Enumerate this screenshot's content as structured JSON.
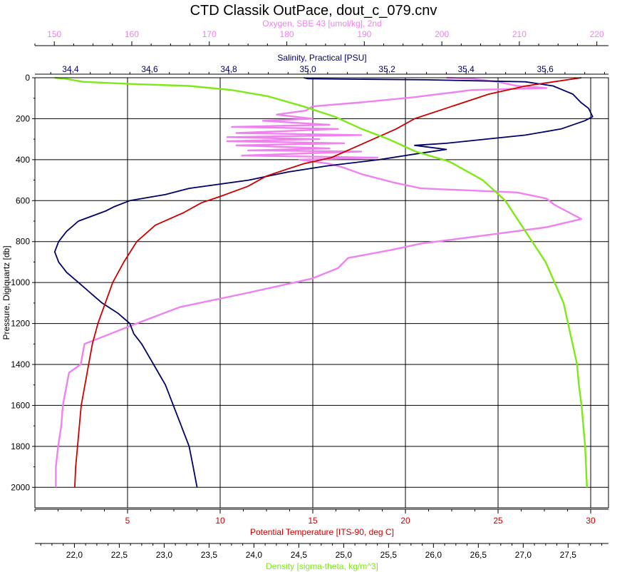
{
  "chart_data": {
    "type": "line",
    "title": "CTD Classik OutPace, dout_c_079.cnv",
    "grid": true,
    "y_axis": {
      "label": "Pressure, Digiquartz [db]",
      "range": [
        0,
        2100
      ],
      "inverted": true,
      "ticks": [
        "0",
        "200",
        "400",
        "600",
        "800",
        "1000",
        "1200",
        "1400",
        "1600",
        "1800",
        "2000"
      ],
      "tick_values": [
        0,
        200,
        400,
        600,
        800,
        1000,
        1200,
        1400,
        1600,
        1800,
        2000
      ]
    },
    "x_axes": [
      {
        "key": "oxygen",
        "label": "Oxygen, SBE 43 [umol/kg], 2nd",
        "position": "top-outer",
        "color": "#ee82ee",
        "range": [
          147.5,
          221.5
        ],
        "ticks": [
          "150",
          "160",
          "170",
          "180",
          "190",
          "200",
          "210",
          "220"
        ],
        "tick_values": [
          150,
          160,
          170,
          180,
          190,
          200,
          210,
          220
        ]
      },
      {
        "key": "salinity",
        "label": "Salinity, Practical [PSU]",
        "position": "top-inner",
        "color": "#000066",
        "range": [
          34.31,
          35.76
        ],
        "ticks": [
          "34,4",
          "34,6",
          "34,8",
          "35,0",
          "35,2",
          "35,4",
          "35,6"
        ],
        "tick_values": [
          34.4,
          34.6,
          34.8,
          35.0,
          35.2,
          35.4,
          35.6
        ]
      },
      {
        "key": "temperature",
        "label": "Potential Temperature [ITS-90, deg C]",
        "position": "bottom-inner",
        "color": "#cc0000",
        "range": [
          0,
          30.96
        ],
        "ticks": [
          "5",
          "10",
          "15",
          "20",
          "25",
          "30"
        ],
        "tick_values": [
          5,
          10,
          15,
          20,
          25,
          30
        ]
      },
      {
        "key": "density",
        "label": "Density [sigma-theta, kg/m^3]",
        "position": "bottom-outer",
        "color": "#7fe817",
        "range": [
          21.56,
          27.95
        ],
        "ticks": [
          "22,0",
          "22,5",
          "23,0",
          "23,5",
          "24,0",
          "24,5",
          "25,0",
          "25,5",
          "26,0",
          "26,5",
          "27,0",
          "27,5"
        ],
        "tick_values": [
          22.0,
          22.5,
          23.0,
          23.5,
          24.0,
          24.5,
          25.0,
          25.5,
          26.0,
          26.5,
          27.0,
          27.5
        ]
      }
    ],
    "series": [
      {
        "axis": "oxygen",
        "color": "#ee82ee",
        "points": [
          [
            200.6,
            0
          ],
          [
            203.9,
            5
          ],
          [
            207.2,
            20
          ],
          [
            209.7,
            40
          ],
          [
            213.5,
            50
          ],
          [
            203.9,
            60
          ],
          [
            196.4,
            95
          ],
          [
            189.6,
            120
          ],
          [
            183.3,
            140
          ],
          [
            182.5,
            160
          ],
          [
            178.7,
            180
          ],
          [
            183.3,
            200
          ],
          [
            176.9,
            210
          ],
          [
            185.5,
            230
          ],
          [
            172.9,
            240
          ],
          [
            186.6,
            250
          ],
          [
            173.5,
            270
          ],
          [
            189.6,
            280
          ],
          [
            172.3,
            290
          ],
          [
            184.2,
            300
          ],
          [
            172.3,
            310
          ],
          [
            187.4,
            320
          ],
          [
            173.5,
            330
          ],
          [
            185.5,
            345
          ],
          [
            175.0,
            355
          ],
          [
            189.6,
            360
          ],
          [
            174.2,
            380
          ],
          [
            191.7,
            390
          ],
          [
            181.6,
            400
          ],
          [
            185.5,
            420
          ],
          [
            187.4,
            440
          ],
          [
            189.6,
            470
          ],
          [
            193.6,
            510
          ],
          [
            197.3,
            540
          ],
          [
            209.7,
            560
          ],
          [
            213.5,
            590
          ],
          [
            214.5,
            620
          ],
          [
            216.5,
            660
          ],
          [
            218.0,
            690
          ],
          [
            213.5,
            730
          ],
          [
            205.5,
            770
          ],
          [
            197.3,
            810
          ],
          [
            193.6,
            840
          ],
          [
            187.9,
            880
          ],
          [
            186.6,
            930
          ],
          [
            183.3,
            980
          ],
          [
            181.0,
            1000
          ],
          [
            175.0,
            1050
          ],
          [
            166.2,
            1120
          ],
          [
            160.6,
            1200
          ],
          [
            153.9,
            1300
          ],
          [
            153.4,
            1400
          ],
          [
            151.9,
            1440
          ],
          [
            151.6,
            1500
          ],
          [
            151.1,
            1600
          ],
          [
            150.9,
            1700
          ],
          [
            150.5,
            1800
          ],
          [
            150.2,
            1900
          ],
          [
            150.2,
            2000
          ]
        ]
      },
      {
        "axis": "salinity",
        "color": "#000066",
        "points": [
          [
            34.99,
            0
          ],
          [
            35.0,
            5
          ],
          [
            35.3,
            10
          ],
          [
            35.55,
            20
          ],
          [
            35.62,
            40
          ],
          [
            35.67,
            80
          ],
          [
            35.69,
            120
          ],
          [
            35.71,
            150
          ],
          [
            35.72,
            190
          ],
          [
            35.7,
            210
          ],
          [
            35.64,
            250
          ],
          [
            35.55,
            280
          ],
          [
            35.45,
            300
          ],
          [
            35.35,
            320
          ],
          [
            35.27,
            330
          ],
          [
            35.35,
            350
          ],
          [
            35.28,
            370
          ],
          [
            35.18,
            400
          ],
          [
            35.05,
            430
          ],
          [
            34.95,
            460
          ],
          [
            34.85,
            500
          ],
          [
            34.7,
            540
          ],
          [
            34.64,
            570
          ],
          [
            34.55,
            600
          ],
          [
            34.51,
            630
          ],
          [
            34.49,
            650
          ],
          [
            34.42,
            700
          ],
          [
            34.39,
            750
          ],
          [
            34.37,
            800
          ],
          [
            34.36,
            850
          ],
          [
            34.37,
            900
          ],
          [
            34.39,
            950
          ],
          [
            34.42,
            1000
          ],
          [
            34.45,
            1050
          ],
          [
            34.48,
            1100
          ],
          [
            34.52,
            1150
          ],
          [
            34.55,
            1200
          ],
          [
            34.56,
            1250
          ],
          [
            34.58,
            1300
          ],
          [
            34.61,
            1400
          ],
          [
            34.64,
            1500
          ],
          [
            34.66,
            1600
          ],
          [
            34.68,
            1700
          ],
          [
            34.7,
            1800
          ],
          [
            34.71,
            1900
          ],
          [
            34.72,
            2000
          ]
        ]
      },
      {
        "axis": "temperature",
        "color": "#cc0000",
        "points": [
          [
            29.5,
            0
          ],
          [
            28.0,
            20
          ],
          [
            26.5,
            40
          ],
          [
            24.5,
            80
          ],
          [
            22.5,
            140
          ],
          [
            20.5,
            200
          ],
          [
            19.5,
            250
          ],
          [
            18.5,
            290
          ],
          [
            17.5,
            330
          ],
          [
            16.0,
            390
          ],
          [
            14.5,
            420
          ],
          [
            12.5,
            480
          ],
          [
            11.5,
            530
          ],
          [
            10.0,
            580
          ],
          [
            9.0,
            610
          ],
          [
            8.0,
            660
          ],
          [
            6.5,
            720
          ],
          [
            5.5,
            800
          ],
          [
            4.8,
            900
          ],
          [
            4.2,
            1000
          ],
          [
            3.8,
            1100
          ],
          [
            3.4,
            1200
          ],
          [
            3.1,
            1300
          ],
          [
            2.9,
            1400
          ],
          [
            2.7,
            1500
          ],
          [
            2.5,
            1600
          ],
          [
            2.4,
            1700
          ],
          [
            2.3,
            1800
          ],
          [
            2.2,
            1900
          ],
          [
            2.15,
            2000
          ]
        ]
      },
      {
        "axis": "density",
        "color": "#7fe817",
        "points": [
          [
            21.78,
            0
          ],
          [
            21.9,
            5
          ],
          [
            22.1,
            20
          ],
          [
            22.6,
            30
          ],
          [
            23.28,
            40
          ],
          [
            23.75,
            60
          ],
          [
            24.15,
            90
          ],
          [
            24.55,
            140
          ],
          [
            24.9,
            190
          ],
          [
            25.2,
            250
          ],
          [
            25.5,
            300
          ],
          [
            25.8,
            360
          ],
          [
            26.18,
            410
          ],
          [
            26.55,
            500
          ],
          [
            26.8,
            600
          ],
          [
            26.95,
            700
          ],
          [
            27.1,
            800
          ],
          [
            27.25,
            900
          ],
          [
            27.35,
            1000
          ],
          [
            27.45,
            1100
          ],
          [
            27.5,
            1200
          ],
          [
            27.55,
            1300
          ],
          [
            27.6,
            1400
          ],
          [
            27.62,
            1500
          ],
          [
            27.65,
            1600
          ],
          [
            27.67,
            1700
          ],
          [
            27.69,
            1800
          ],
          [
            27.7,
            1900
          ],
          [
            27.71,
            2000
          ]
        ]
      }
    ]
  }
}
